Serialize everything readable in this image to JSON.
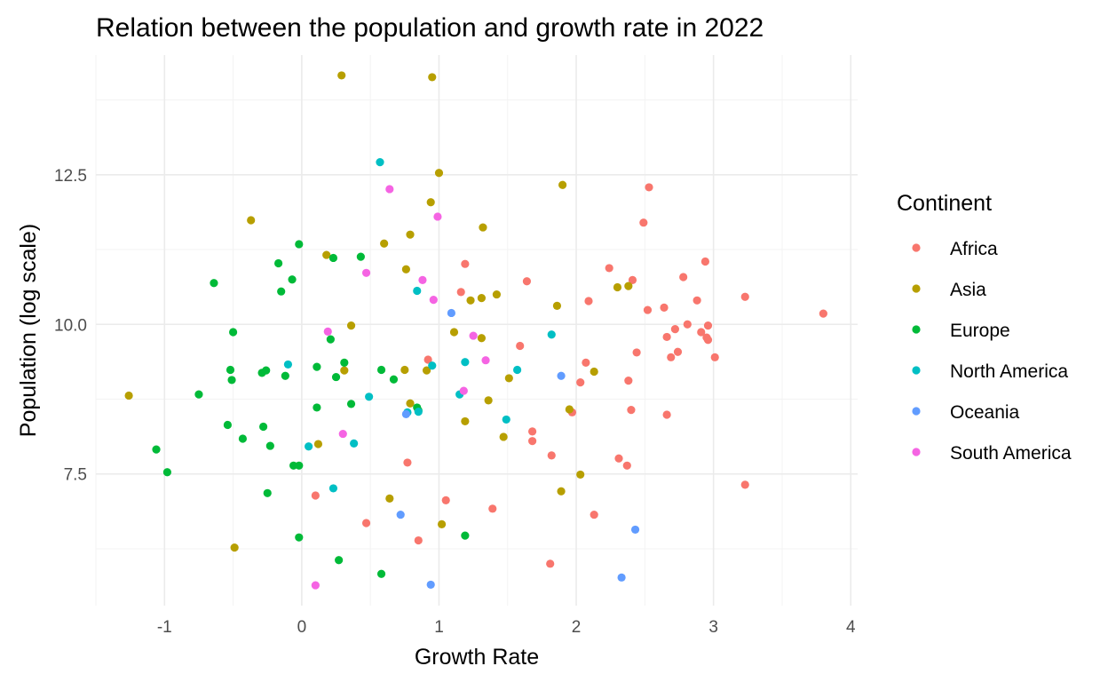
{
  "chart_data": {
    "type": "scatter",
    "title": "Relation between the population and growth rate in 2022",
    "xlabel": "Growth Rate",
    "ylabel": "Population (log scale)",
    "xlim": [
      -1.5,
      4.05
    ],
    "ylim": [
      5.3,
      14.5
    ],
    "x_ticks": [
      {
        "value": -1,
        "label": "-1"
      },
      {
        "value": 0,
        "label": "0"
      },
      {
        "value": 1,
        "label": "1"
      },
      {
        "value": 2,
        "label": "2"
      },
      {
        "value": 3,
        "label": "3"
      },
      {
        "value": 4,
        "label": "4"
      }
    ],
    "y_ticks": [
      {
        "value": 7.5,
        "label": "7.5"
      },
      {
        "value": 10.0,
        "label": "10.0"
      },
      {
        "value": 12.5,
        "label": "12.5"
      }
    ],
    "grid": true,
    "legend": {
      "title": "Continent",
      "position": "right"
    },
    "series": [
      {
        "name": "Africa",
        "color": "#F8766D",
        "points": [
          [
            2.53,
            12.29
          ],
          [
            2.49,
            11.7
          ],
          [
            2.94,
            11.05
          ],
          [
            2.24,
            10.94
          ],
          [
            1.19,
            11.01
          ],
          [
            1.16,
            10.54
          ],
          [
            1.64,
            10.72
          ],
          [
            2.41,
            10.74
          ],
          [
            2.78,
            10.79
          ],
          [
            2.09,
            10.39
          ],
          [
            2.52,
            10.24
          ],
          [
            2.64,
            10.28
          ],
          [
            2.88,
            10.4
          ],
          [
            3.23,
            10.46
          ],
          [
            3.8,
            10.18
          ],
          [
            2.81,
            10.0
          ],
          [
            2.72,
            9.92
          ],
          [
            2.66,
            9.79
          ],
          [
            2.91,
            9.87
          ],
          [
            2.96,
            9.98
          ],
          [
            2.95,
            9.78
          ],
          [
            2.96,
            9.74
          ],
          [
            2.74,
            9.54
          ],
          [
            2.69,
            9.45
          ],
          [
            3.01,
            9.45
          ],
          [
            2.44,
            9.53
          ],
          [
            1.59,
            9.64
          ],
          [
            2.07,
            9.36
          ],
          [
            2.03,
            9.03
          ],
          [
            2.38,
            9.06
          ],
          [
            2.4,
            8.57
          ],
          [
            2.66,
            8.49
          ],
          [
            1.97,
            8.53
          ],
          [
            1.68,
            8.21
          ],
          [
            1.68,
            8.05
          ],
          [
            1.82,
            7.81
          ],
          [
            0.77,
            7.69
          ],
          [
            2.31,
            7.76
          ],
          [
            2.37,
            7.64
          ],
          [
            3.23,
            7.32
          ],
          [
            0.1,
            7.14
          ],
          [
            1.05,
            7.06
          ],
          [
            1.39,
            6.92
          ],
          [
            0.47,
            6.68
          ],
          [
            2.13,
            6.82
          ],
          [
            0.85,
            6.39
          ],
          [
            1.81,
            6.0
          ],
          [
            0.92,
            9.41
          ]
        ]
      },
      {
        "name": "Asia",
        "color": "#B79F00",
        "points": [
          [
            0.29,
            14.16
          ],
          [
            0.95,
            14.13
          ],
          [
            1.0,
            12.53
          ],
          [
            1.9,
            12.33
          ],
          [
            0.94,
            12.04
          ],
          [
            -0.37,
            11.74
          ],
          [
            1.32,
            11.62
          ],
          [
            0.79,
            11.5
          ],
          [
            0.6,
            11.35
          ],
          [
            0.18,
            11.16
          ],
          [
            0.76,
            10.92
          ],
          [
            1.86,
            10.31
          ],
          [
            2.3,
            10.62
          ],
          [
            2.38,
            10.64
          ],
          [
            1.42,
            10.5
          ],
          [
            1.31,
            10.44
          ],
          [
            1.23,
            10.4
          ],
          [
            1.11,
            9.87
          ],
          [
            0.36,
            9.98
          ],
          [
            1.31,
            9.77
          ],
          [
            0.31,
            9.23
          ],
          [
            0.75,
            9.24
          ],
          [
            0.91,
            9.23
          ],
          [
            2.13,
            9.21
          ],
          [
            1.51,
            9.1
          ],
          [
            -1.26,
            8.81
          ],
          [
            0.79,
            8.68
          ],
          [
            1.36,
            8.73
          ],
          [
            1.95,
            8.58
          ],
          [
            1.19,
            8.38
          ],
          [
            1.47,
            8.12
          ],
          [
            0.12,
            8.0
          ],
          [
            2.03,
            7.49
          ],
          [
            1.89,
            7.21
          ],
          [
            0.64,
            7.09
          ],
          [
            1.02,
            6.66
          ],
          [
            -0.49,
            6.27
          ]
        ]
      },
      {
        "name": "Europe",
        "color": "#00BA38",
        "points": [
          [
            -0.02,
            11.34
          ],
          [
            0.43,
            11.13
          ],
          [
            0.23,
            11.11
          ],
          [
            -0.17,
            11.02
          ],
          [
            -0.64,
            10.69
          ],
          [
            -0.15,
            10.55
          ],
          [
            -0.07,
            10.75
          ],
          [
            -0.5,
            9.87
          ],
          [
            0.21,
            9.75
          ],
          [
            0.31,
            9.36
          ],
          [
            0.11,
            9.29
          ],
          [
            -0.52,
            9.24
          ],
          [
            -0.26,
            9.23
          ],
          [
            -0.29,
            9.19
          ],
          [
            0.58,
            9.24
          ],
          [
            0.25,
            9.12
          ],
          [
            -0.12,
            9.14
          ],
          [
            -0.51,
            9.07
          ],
          [
            0.67,
            9.08
          ],
          [
            0.36,
            8.67
          ],
          [
            -0.75,
            8.83
          ],
          [
            0.11,
            8.61
          ],
          [
            0.84,
            8.61
          ],
          [
            0.85,
            8.56
          ],
          [
            -0.54,
            8.32
          ],
          [
            -0.28,
            8.29
          ],
          [
            -0.43,
            8.09
          ],
          [
            -0.23,
            7.97
          ],
          [
            -1.06,
            7.91
          ],
          [
            -0.06,
            7.64
          ],
          [
            -0.02,
            7.64
          ],
          [
            -0.98,
            7.53
          ],
          [
            -0.25,
            7.18
          ],
          [
            -0.02,
            6.44
          ],
          [
            1.19,
            6.47
          ],
          [
            0.27,
            6.06
          ],
          [
            0.58,
            5.83
          ]
        ]
      },
      {
        "name": "North America",
        "color": "#00BFC4",
        "points": [
          [
            0.57,
            12.71
          ],
          [
            0.84,
            10.56
          ],
          [
            1.82,
            9.83
          ],
          [
            -0.1,
            9.33
          ],
          [
            0.95,
            9.31
          ],
          [
            1.19,
            9.37
          ],
          [
            1.57,
            9.24
          ],
          [
            0.49,
            8.79
          ],
          [
            1.15,
            8.83
          ],
          [
            0.77,
            8.53
          ],
          [
            0.85,
            8.54
          ],
          [
            1.49,
            8.41
          ],
          [
            0.38,
            8.01
          ],
          [
            0.05,
            7.96
          ],
          [
            0.23,
            7.26
          ]
        ]
      },
      {
        "name": "Oceania",
        "color": "#619CFF",
        "points": [
          [
            1.09,
            10.19
          ],
          [
            1.89,
            9.14
          ],
          [
            0.76,
            8.5
          ],
          [
            0.72,
            6.82
          ],
          [
            2.43,
            6.57
          ],
          [
            2.33,
            5.77
          ],
          [
            0.94,
            5.65
          ]
        ]
      },
      {
        "name": "South America",
        "color": "#F564E3",
        "points": [
          [
            0.64,
            12.26
          ],
          [
            0.99,
            11.8
          ],
          [
            0.47,
            10.86
          ],
          [
            0.88,
            10.74
          ],
          [
            0.96,
            10.41
          ],
          [
            0.19,
            9.88
          ],
          [
            1.25,
            9.81
          ],
          [
            1.34,
            9.4
          ],
          [
            1.18,
            8.89
          ],
          [
            0.3,
            8.17
          ],
          [
            0.1,
            5.64
          ]
        ]
      }
    ]
  }
}
